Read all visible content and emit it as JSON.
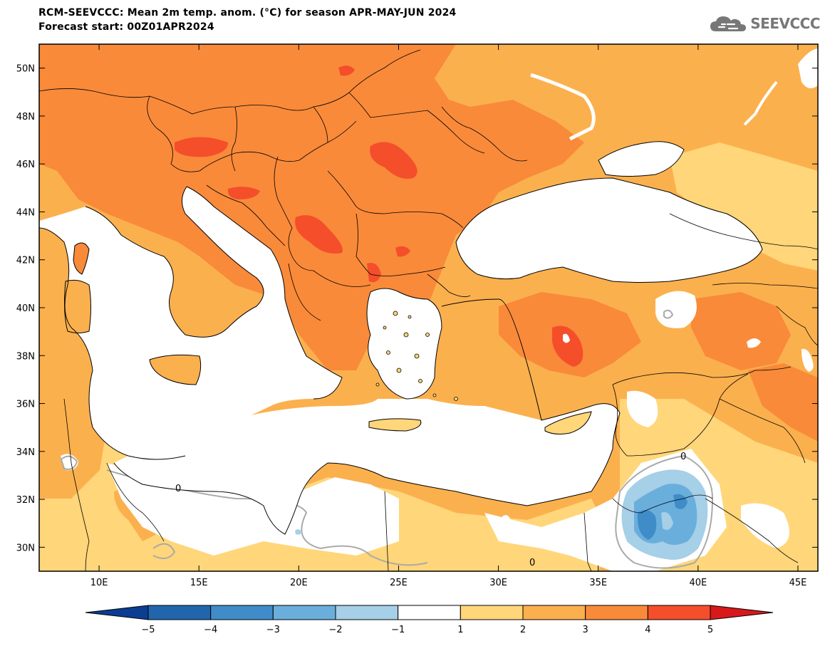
{
  "header": {
    "title": "RCM-SEEVCCC: Mean 2m temp. anom. (°C) for season APR-MAY-JUN 2024",
    "subtitle": "Forecast start: 00Z01APR2024"
  },
  "logo": {
    "text": "SEEVCCC",
    "icon": "cloud-logo-icon"
  },
  "map": {
    "lon_range": [
      7,
      46
    ],
    "lat_range": [
      29,
      51
    ],
    "x_ticks": [
      "10E",
      "15E",
      "20E",
      "25E",
      "30E",
      "35E",
      "40E",
      "45E"
    ],
    "x_tick_values": [
      10,
      15,
      20,
      25,
      30,
      35,
      40,
      45
    ],
    "y_ticks": [
      "30N",
      "32N",
      "34N",
      "36N",
      "38N",
      "40N",
      "42N",
      "44N",
      "46N",
      "48N",
      "50N"
    ],
    "y_tick_values": [
      30,
      32,
      34,
      36,
      38,
      40,
      42,
      44,
      46,
      48,
      50
    ],
    "contour_label": "0"
  },
  "colorbar": {
    "labels": [
      "-5",
      "-4",
      "-3",
      "-2",
      "-1",
      "1",
      "2",
      "3",
      "4",
      "5"
    ],
    "colors": [
      "#0b3d91",
      "#2166ac",
      "#3f8cc8",
      "#6aaedc",
      "#a6cfe8",
      "#ffffff",
      "#ffd67a",
      "#fbb04e",
      "#f98a3a",
      "#f54e2a",
      "#d7191c"
    ]
  },
  "colors": {
    "sea": "#ffffff",
    "anom_1_2": "#ffd67a",
    "anom_2_3": "#fbb04e",
    "anom_3_4": "#f98a3a",
    "anom_4_5": "#f54e2a",
    "neg_1_2": "#a6cfe8",
    "neg_2_3": "#6aaedc",
    "neg_3_4": "#3f8cc8"
  }
}
